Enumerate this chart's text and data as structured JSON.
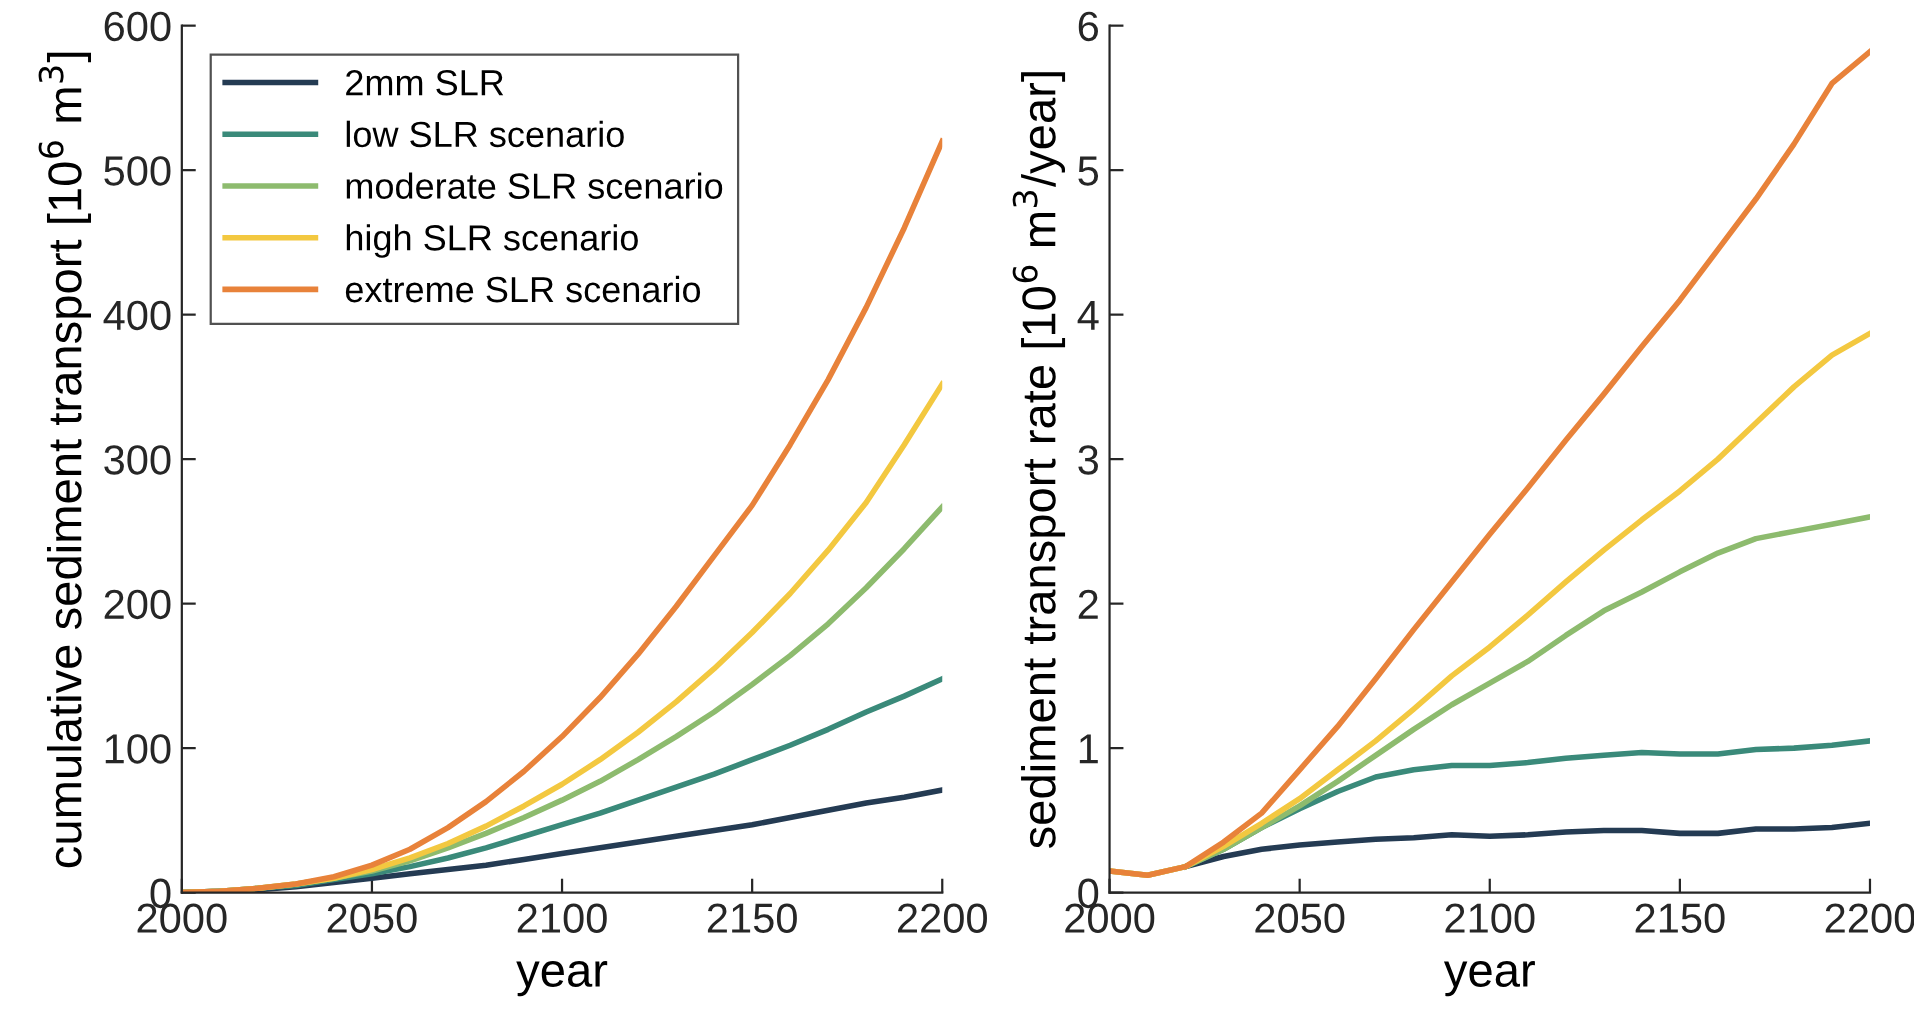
{
  "chart_data": [
    {
      "type": "line",
      "xlabel": "year",
      "ylabel": "cumulative sediment transport [10$^{6}$ m$^{3}$]",
      "x": [
        2000,
        2010,
        2020,
        2030,
        2040,
        2050,
        2060,
        2070,
        2080,
        2090,
        2100,
        2110,
        2120,
        2130,
        2140,
        2150,
        2160,
        2170,
        2180,
        2190,
        2200
      ],
      "series": [
        {
          "name": "2mm SLR",
          "color": "#243b53",
          "values": [
            0,
            1,
            2,
            4,
            7,
            10,
            13,
            16,
            19,
            23,
            27,
            31,
            35,
            39,
            43,
            47,
            52,
            57,
            62,
            66,
            71
          ]
        },
        {
          "name": "low SLR scenario",
          "color": "#3a8a7a",
          "values": [
            0,
            1,
            3,
            5,
            9,
            13,
            18,
            24,
            31,
            39,
            47,
            55,
            64,
            73,
            82,
            92,
            102,
            113,
            125,
            136,
            148
          ]
        },
        {
          "name": "moderate SLR scenario",
          "color": "#8dbb6e",
          "values": [
            0,
            1,
            3,
            6,
            10,
            15,
            22,
            31,
            41,
            52,
            64,
            77,
            92,
            108,
            125,
            144,
            164,
            186,
            211,
            238,
            267
          ]
        },
        {
          "name": "high SLR scenario",
          "color": "#f3c840",
          "values": [
            0,
            1,
            3,
            6,
            10,
            16,
            24,
            34,
            46,
            60,
            75,
            92,
            111,
            132,
            155,
            180,
            207,
            237,
            270,
            310,
            352
          ]
        },
        {
          "name": "extreme SLR scenario",
          "color": "#e8823a",
          "values": [
            0,
            1,
            3,
            6,
            11,
            19,
            30,
            45,
            63,
            84,
            108,
            135,
            165,
            198,
            233,
            268,
            310,
            355,
            405,
            460,
            520
          ]
        }
      ],
      "xlim": [
        2000,
        2200
      ],
      "xticks": [
        2000,
        2050,
        2100,
        2150,
        2200
      ],
      "ylim": [
        0,
        600
      ],
      "yticks": [
        0,
        100,
        200,
        300,
        400,
        500,
        600
      ],
      "legend": "top left",
      "line_style": "solid",
      "grid": false
    },
    {
      "type": "line",
      "xlabel": "year",
      "ylabel": "sediment transport rate [10$^{6}$ m$^{3}$/year]",
      "x": [
        2000,
        2010,
        2020,
        2030,
        2040,
        2050,
        2060,
        2070,
        2080,
        2090,
        2100,
        2110,
        2120,
        2130,
        2140,
        2150,
        2160,
        2170,
        2180,
        2190,
        2200
      ],
      "series": [
        {
          "color": "#243b53",
          "values": [
            null,
            null,
            0.18,
            0.25,
            0.3,
            0.33,
            0.35,
            0.37,
            0.38,
            0.4,
            0.39,
            0.4,
            0.42,
            0.43,
            0.43,
            0.41,
            0.41,
            0.44,
            0.44,
            0.45,
            0.48
          ]
        },
        {
          "color": "#3a8a7a",
          "values": [
            null,
            null,
            0.18,
            0.3,
            0.45,
            0.58,
            0.7,
            0.8,
            0.85,
            0.88,
            0.88,
            0.9,
            0.93,
            0.95,
            0.97,
            0.96,
            0.96,
            0.99,
            1.0,
            1.02,
            1.05
          ]
        },
        {
          "color": "#8dbb6e",
          "values": [
            0.15,
            0.12,
            0.18,
            0.3,
            0.45,
            0.6,
            0.77,
            0.95,
            1.13,
            1.3,
            1.45,
            1.6,
            1.78,
            1.95,
            2.08,
            2.22,
            2.35,
            2.45,
            2.5,
            2.55,
            2.6
          ]
        },
        {
          "color": "#f3c840",
          "values": [
            0.15,
            0.12,
            0.18,
            0.32,
            0.48,
            0.65,
            0.85,
            1.05,
            1.27,
            1.5,
            1.7,
            1.92,
            2.15,
            2.37,
            2.58,
            2.78,
            3.0,
            3.25,
            3.5,
            3.72,
            3.87
          ]
        },
        {
          "color": "#e8823a",
          "values": [
            0.15,
            0.12,
            0.18,
            0.35,
            0.55,
            0.85,
            1.15,
            1.48,
            1.82,
            2.15,
            2.48,
            2.8,
            3.13,
            3.45,
            3.78,
            4.1,
            4.45,
            4.8,
            5.18,
            5.6,
            5.82
          ]
        }
      ],
      "xlim": [
        2000,
        2200
      ],
      "xticks": [
        2000,
        2050,
        2100,
        2150,
        2200
      ],
      "ylim": [
        0,
        6
      ],
      "yticks": [
        0,
        1,
        2,
        3,
        4,
        5,
        6
      ],
      "line_style": "solid",
      "grid": false
    }
  ]
}
